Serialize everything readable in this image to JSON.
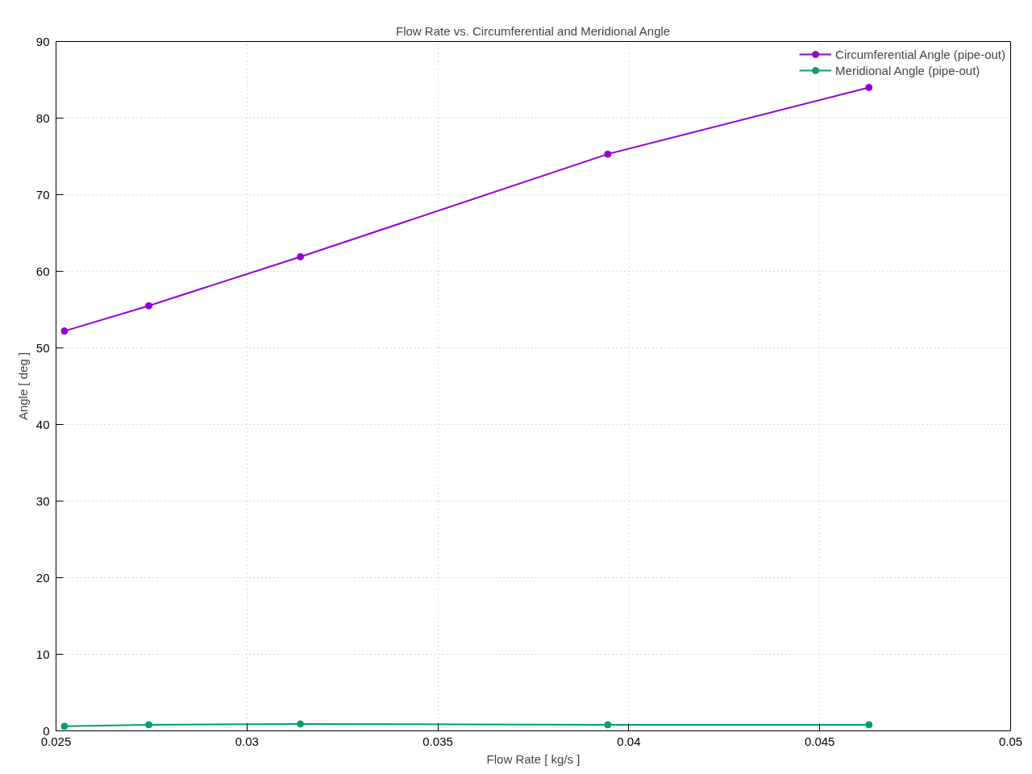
{
  "chart_data": {
    "type": "line",
    "title": "Flow Rate vs. Circumferential and Meridional Angle",
    "xlabel": "Flow Rate [ kg/s ]",
    "ylabel": "Angle [ deg ]",
    "x": [
      0.02522,
      0.02743,
      0.0314,
      0.03945,
      0.04629
    ],
    "series": [
      {
        "name": "Circumferential Angle (pipe-out)",
        "color": "#9400d3",
        "values": [
          52.2,
          55.5,
          61.9,
          75.3,
          84.0
        ]
      },
      {
        "name": "Meridional Angle (pipe-out)",
        "color": "#009e73",
        "values": [
          0.6,
          0.8,
          0.9,
          0.8,
          0.8
        ]
      }
    ],
    "xlim": [
      0.025,
      0.05
    ],
    "ylim": [
      0,
      90
    ],
    "xticks": [
      0.025,
      0.03,
      0.035,
      0.04,
      0.045,
      0.05
    ],
    "yticks": [
      0,
      10,
      20,
      30,
      40,
      50,
      60,
      70,
      80,
      90
    ],
    "grid": true,
    "legend": "top right",
    "marker": "circle",
    "line_style": "solid"
  }
}
